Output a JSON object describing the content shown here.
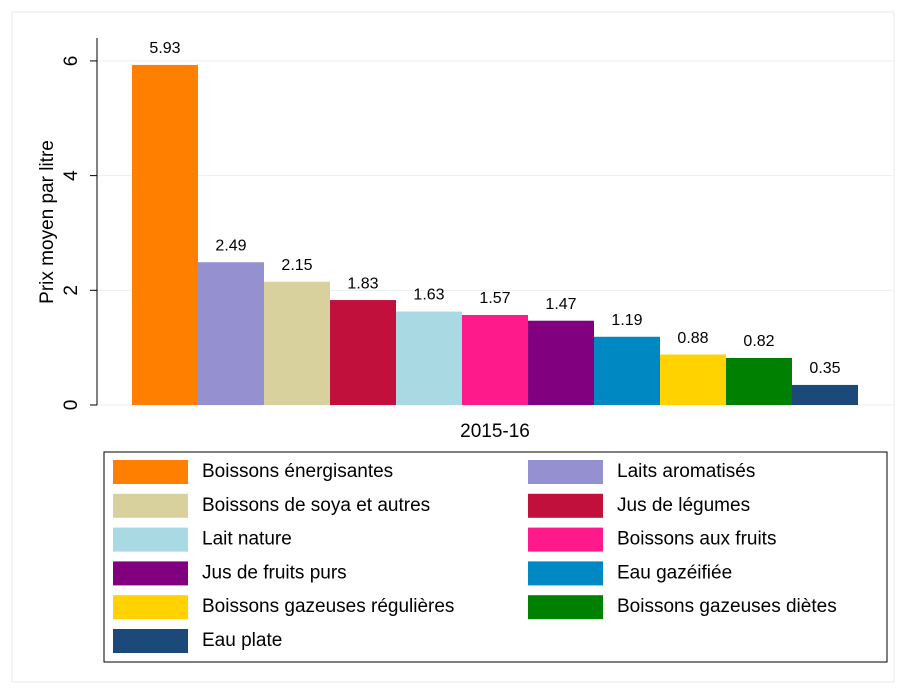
{
  "chart_data": {
    "type": "bar",
    "y_label": "Prix moyen par litre",
    "categories": [
      "2015-16"
    ],
    "series": [
      {
        "name": "Boissons énergisantes",
        "color": "#ff7f00",
        "values": [
          5.93
        ]
      },
      {
        "name": "Laits aromatisés",
        "color": "#9591d1",
        "values": [
          2.49
        ]
      },
      {
        "name": "Boissons de soya et autres",
        "color": "#d9d19d",
        "values": [
          2.15
        ]
      },
      {
        "name": "Jus de légumes",
        "color": "#c1103b",
        "values": [
          1.83
        ]
      },
      {
        "name": "Lait nature",
        "color": "#a9d9e2",
        "values": [
          1.63
        ]
      },
      {
        "name": "Boissons aux fruits",
        "color": "#ff1a8c",
        "values": [
          1.57
        ]
      },
      {
        "name": "Jus de fruits purs",
        "color": "#800080",
        "values": [
          1.47
        ]
      },
      {
        "name": "Eau gazéifiée",
        "color": "#0088c2",
        "values": [
          1.19
        ]
      },
      {
        "name": "Boissons gazeuses régulières",
        "color": "#ffd200",
        "values": [
          0.88
        ]
      },
      {
        "name": "Boissons gazeuses diètes",
        "color": "#008000",
        "values": [
          0.82
        ]
      },
      {
        "name": "Eau plate",
        "color": "#1b4979",
        "values": [
          0.35
        ]
      }
    ],
    "ylim": [
      0,
      6.4
    ],
    "yticks": [
      0,
      2,
      4,
      6
    ],
    "grid": true
  }
}
